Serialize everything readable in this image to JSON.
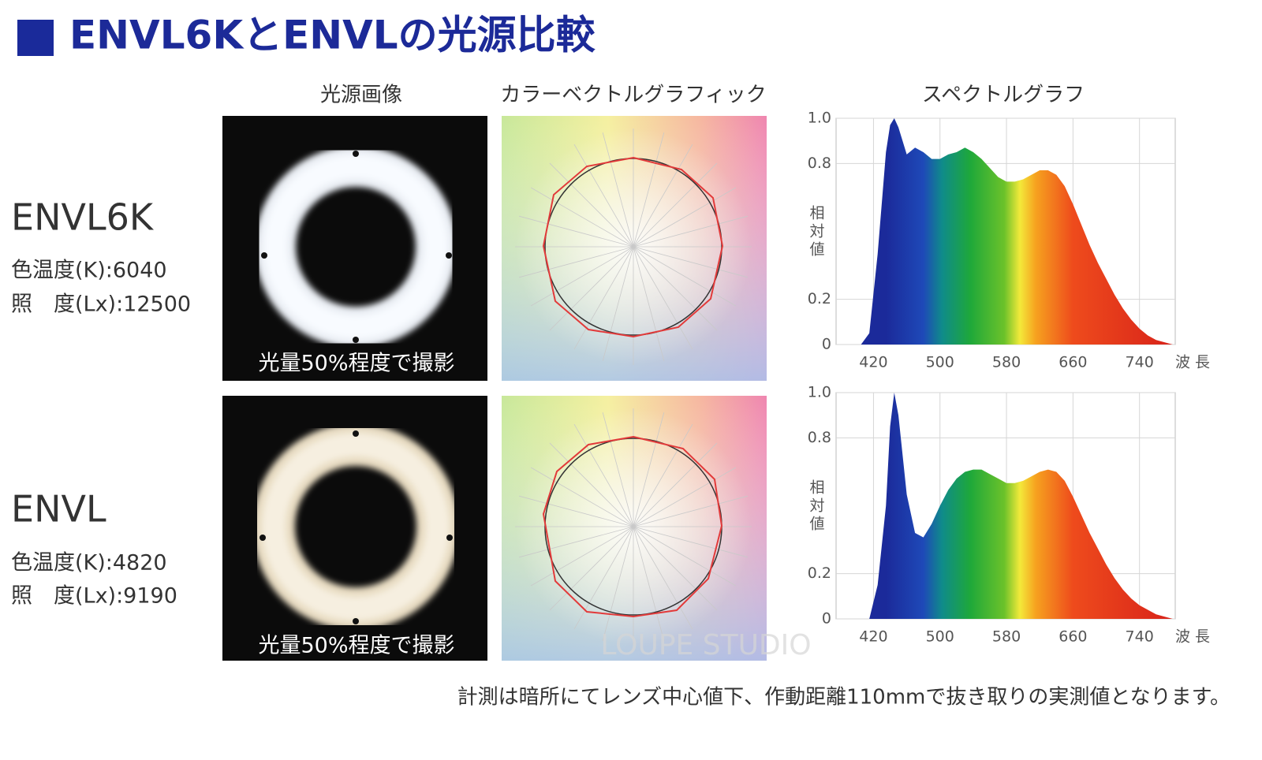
{
  "header": {
    "title": "ENVL6KとENVLの光源比較"
  },
  "columns": [
    "光源画像",
    "カラーベクトルグラフィック",
    "スペクトルグラフ"
  ],
  "products": [
    {
      "name": "ENVL6K",
      "color_temp": "色温度(K):6040",
      "illuminance": "照　度(Lx):12500",
      "photo_caption": "光量50%程度で撮影"
    },
    {
      "name": "ENVL",
      "color_temp": "色温度(K):4820",
      "illuminance": "照　度(Lx):9190",
      "photo_caption": "光量50%程度で撮影"
    }
  ],
  "chart_data": [
    {
      "type": "area",
      "x_label": "波長",
      "y_label": "相対値",
      "x": [
        405,
        415,
        425,
        435,
        440,
        445,
        450,
        460,
        470,
        480,
        490,
        500,
        510,
        520,
        530,
        540,
        550,
        560,
        570,
        580,
        590,
        600,
        610,
        620,
        630,
        640,
        650,
        660,
        670,
        680,
        690,
        700,
        710,
        720,
        730,
        740,
        750,
        760,
        770,
        780
      ],
      "values": [
        0,
        0.05,
        0.4,
        0.85,
        0.97,
        1.0,
        0.96,
        0.84,
        0.87,
        0.85,
        0.82,
        0.82,
        0.84,
        0.85,
        0.87,
        0.85,
        0.82,
        0.78,
        0.74,
        0.72,
        0.72,
        0.73,
        0.75,
        0.77,
        0.77,
        0.75,
        0.7,
        0.62,
        0.53,
        0.44,
        0.36,
        0.29,
        0.22,
        0.16,
        0.11,
        0.07,
        0.04,
        0.02,
        0.01,
        0
      ],
      "xlim": [
        375,
        783
      ],
      "xticks": [
        420,
        500,
        580,
        660,
        740
      ],
      "ylim": [
        0,
        1
      ],
      "yticks": [
        0,
        0.2,
        0.8,
        {
          "value": 1,
          "label": "1.0"
        }
      ],
      "grid": true
    },
    {
      "type": "area",
      "x_label": "波長",
      "y_label": "相対値",
      "x": [
        405,
        415,
        425,
        435,
        440,
        445,
        450,
        460,
        470,
        480,
        490,
        500,
        510,
        520,
        530,
        540,
        550,
        560,
        570,
        580,
        590,
        600,
        610,
        620,
        630,
        640,
        650,
        660,
        670,
        680,
        690,
        700,
        710,
        720,
        730,
        740,
        750,
        760,
        770,
        780
      ],
      "values": [
        0,
        0,
        0.15,
        0.5,
        0.85,
        1.0,
        0.9,
        0.55,
        0.38,
        0.36,
        0.42,
        0.5,
        0.57,
        0.62,
        0.65,
        0.66,
        0.66,
        0.64,
        0.62,
        0.6,
        0.6,
        0.61,
        0.63,
        0.65,
        0.66,
        0.65,
        0.61,
        0.54,
        0.46,
        0.38,
        0.31,
        0.24,
        0.18,
        0.13,
        0.09,
        0.06,
        0.04,
        0.02,
        0.01,
        0
      ],
      "xlim": [
        375,
        783
      ],
      "xticks": [
        420,
        500,
        580,
        660,
        740
      ],
      "ylim": [
        0,
        1
      ],
      "yticks": [
        0,
        0.2,
        0.8,
        {
          "value": 1,
          "label": "1.0"
        }
      ],
      "grid": true
    }
  ],
  "footnote": "計測は暗所にてレンズ中心値下、作動距離110mmで抜き取りの実測値となります。",
  "watermark": "LOUPE STUDIO"
}
